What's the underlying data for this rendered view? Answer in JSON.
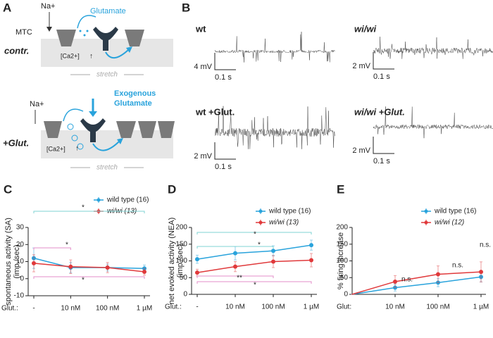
{
  "panel_a": {
    "label": "A",
    "top": {
      "condition": "contr.",
      "channel_label": "MTC",
      "ion": "Na+",
      "ligand": "Glutamate",
      "calcium": "[Ca2+]",
      "stretch": "stretch"
    },
    "bottom": {
      "condition": "+Glut.",
      "ion": "Na+",
      "ligand_line1": "Exogenous",
      "ligand_line2": "Glutamate",
      "calcium": "[Ca2+]",
      "stretch": "stretch"
    }
  },
  "panel_b": {
    "label": "B",
    "traces": [
      {
        "title": "wt",
        "v_scale": "4 mV",
        "t_scale": "0.1 s"
      },
      {
        "title": "wi/wi",
        "v_scale": "2 mV",
        "t_scale": "0.1 s"
      },
      {
        "title": "wt +Glut.",
        "v_scale": "2 mV",
        "t_scale": "0.1 s"
      },
      {
        "title": "wi/wi +Glut.",
        "v_scale": "2 mV",
        "t_scale": "0.1 s"
      }
    ]
  },
  "chart_data": [
    {
      "type": "line",
      "label": "C",
      "ylabel": [
        "spontaneous activity (SA)",
        "(imp./sec)"
      ],
      "xlabel": "Glut.:",
      "categories": [
        "-",
        "10 nM",
        "100 nM",
        "1 µM"
      ],
      "ylim": [
        -10,
        30
      ],
      "yticks": [
        -10,
        0,
        10,
        20,
        30
      ],
      "series": [
        {
          "name": "wild type (16)",
          "color": "#29a3dc",
          "values": [
            12,
            6.5,
            6.5,
            6
          ],
          "errors": [
            6,
            3,
            2,
            2
          ]
        },
        {
          "name": "wi/wi (13)",
          "color": "#e0393b",
          "values": [
            9,
            7,
            6.5,
            4
          ],
          "errors": [
            5,
            4,
            3,
            2
          ]
        }
      ],
      "annotations": [
        "*",
        "*",
        "*"
      ]
    },
    {
      "type": "line",
      "label": "D",
      "ylabel": [
        "net evoked activity (NEA)",
        "(imp./sec)"
      ],
      "xlabel": "Glut.:",
      "categories": [
        "-",
        "10 nM",
        "100 nM",
        "1 µM"
      ],
      "ylim": [
        0,
        200
      ],
      "yticks": [
        0,
        50,
        100,
        150,
        200
      ],
      "series": [
        {
          "name": "wild type (16)",
          "color": "#29a3dc",
          "values": [
            105,
            123,
            130,
            147
          ],
          "errors": [
            12,
            20,
            15,
            15
          ]
        },
        {
          "name": "wi/wi (13)",
          "color": "#e0393b",
          "values": [
            65,
            83,
            98,
            102
          ],
          "errors": [
            10,
            15,
            18,
            20
          ]
        }
      ],
      "annotations": [
        "*",
        "*",
        "**",
        "*"
      ]
    },
    {
      "type": "line",
      "label": "E",
      "ylabel": [
        "% firing increase"
      ],
      "xlabel": "Glut:",
      "categories": [
        null,
        "10 nM",
        "100 nM",
        "1 µM"
      ],
      "ylim": [
        0,
        200
      ],
      "yticks": [
        0,
        50,
        100,
        150,
        200
      ],
      "series": [
        {
          "name": "wild type (16)",
          "color": "#29a3dc",
          "values": [
            0,
            20,
            35,
            52
          ],
          "errors": [
            0,
            10,
            12,
            15
          ]
        },
        {
          "name": "wi/wi (12)",
          "color": "#e0393b",
          "values": [
            0,
            38,
            60,
            67
          ],
          "errors": [
            0,
            18,
            25,
            30
          ]
        }
      ],
      "annotations": [
        "n.s.",
        "n.s.",
        "n.s."
      ]
    }
  ]
}
